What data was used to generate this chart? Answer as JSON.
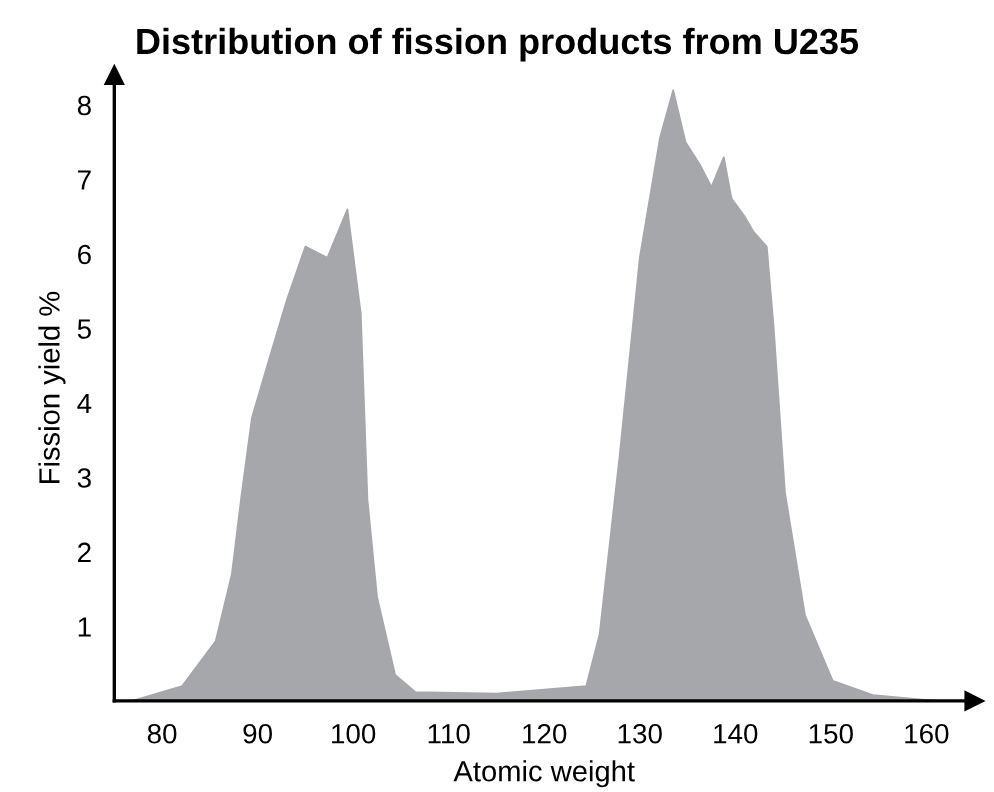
{
  "chart_data": {
    "type": "area",
    "title": "Distribution of fission products from U235",
    "xlabel": "Atomic weight",
    "ylabel": "Fission yield %",
    "x": [
      76.9,
      82.1,
      85.6,
      87.3,
      88.3,
      89.4,
      91,
      93.1,
      95,
      97.3,
      99.4,
      100.8,
      101.5,
      102.5,
      104.4,
      106.5,
      115,
      124.4,
      125.8,
      127.9,
      130,
      132.1,
      133.5,
      134.8,
      136.3,
      137.5,
      138.8,
      139.6,
      141,
      141.9,
      143.3,
      144,
      145.2,
      147.3,
      150.2,
      154.4,
      161
    ],
    "values": [
      0,
      0.2,
      0.8,
      1.7,
      2.75,
      3.8,
      4.5,
      5.4,
      6.1,
      5.95,
      6.6,
      5.2,
      2.7,
      1.4,
      0.35,
      0.12,
      0.1,
      0.2,
      0.9,
      3.3,
      5.95,
      7.55,
      8.2,
      7.5,
      7.2,
      6.9,
      7.3,
      6.75,
      6.5,
      6.3,
      6.1,
      5.05,
      2.8,
      1.15,
      0.27,
      0.08,
      0
    ],
    "color": "#a6a7ab",
    "xlim": [
      75,
      165
    ],
    "ylim": [
      0,
      8.4
    ],
    "xticks": [
      80,
      90,
      100,
      110,
      120,
      130,
      140,
      150,
      160
    ],
    "yticks": [
      1,
      2,
      3,
      4,
      5,
      6,
      7,
      8
    ],
    "grid": false
  }
}
